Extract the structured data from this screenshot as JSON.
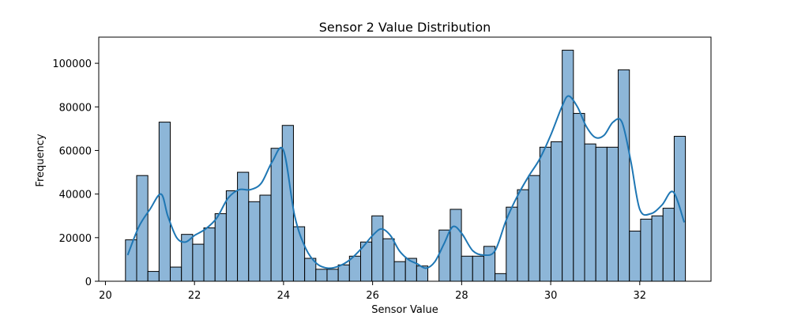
{
  "chart_data": {
    "type": "bar",
    "title": "Sensor 2 Value Distribution",
    "xlabel": "Sensor Value",
    "ylabel": "Frequency",
    "xlim": [
      19.85,
      33.6
    ],
    "ylim": [
      0,
      112000
    ],
    "xticks": [
      "20",
      "22",
      "24",
      "26",
      "28",
      "30",
      "32"
    ],
    "yticks": [
      "0",
      "20000",
      "40000",
      "60000",
      "80000",
      "100000"
    ],
    "bins": {
      "start": 20.45,
      "width": 0.2515,
      "values": [
        19000,
        48500,
        4500,
        73000,
        6500,
        21500,
        17000,
        24500,
        31000,
        41500,
        50000,
        36500,
        39500,
        61000,
        71500,
        25000,
        10500,
        5500,
        5500,
        7500,
        11500,
        18000,
        30000,
        19500,
        9000,
        10500,
        7000,
        0,
        23500,
        33000,
        11500,
        11500,
        16000,
        3500,
        34000,
        42000,
        48500,
        61500,
        64000,
        106000,
        77000,
        63000,
        61500,
        61500,
        97000,
        23000,
        28500,
        30000,
        33500,
        66500
      ]
    },
    "kde": {
      "x": [
        20.5,
        20.75,
        21.0,
        21.25,
        21.4,
        21.6,
        21.8,
        22.0,
        22.25,
        22.5,
        22.75,
        23.0,
        23.25,
        23.5,
        23.75,
        24.0,
        24.25,
        24.5,
        24.75,
        25.0,
        25.25,
        25.5,
        25.75,
        26.0,
        26.2,
        26.4,
        26.6,
        26.8,
        27.0,
        27.2,
        27.4,
        27.6,
        27.8,
        28.0,
        28.25,
        28.5,
        28.75,
        29.0,
        29.25,
        29.5,
        29.75,
        30.0,
        30.25,
        30.4,
        30.6,
        30.8,
        31.0,
        31.2,
        31.4,
        31.6,
        31.8,
        32.0,
        32.25,
        32.5,
        32.75,
        33.0
      ],
      "y": [
        12000,
        25000,
        33000,
        40000,
        30000,
        20000,
        18000,
        21000,
        24000,
        29000,
        38000,
        42000,
        42000,
        45000,
        55000,
        60000,
        30000,
        15000,
        8000,
        6000,
        7000,
        10000,
        15000,
        21000,
        24000,
        21000,
        14000,
        10000,
        8000,
        6000,
        9000,
        17000,
        25000,
        22000,
        14000,
        12000,
        14000,
        28000,
        39000,
        48000,
        56000,
        67000,
        80000,
        85000,
        80000,
        71000,
        66000,
        67000,
        73000,
        73000,
        55000,
        33000,
        31000,
        35000,
        41000,
        27000
      ]
    }
  }
}
